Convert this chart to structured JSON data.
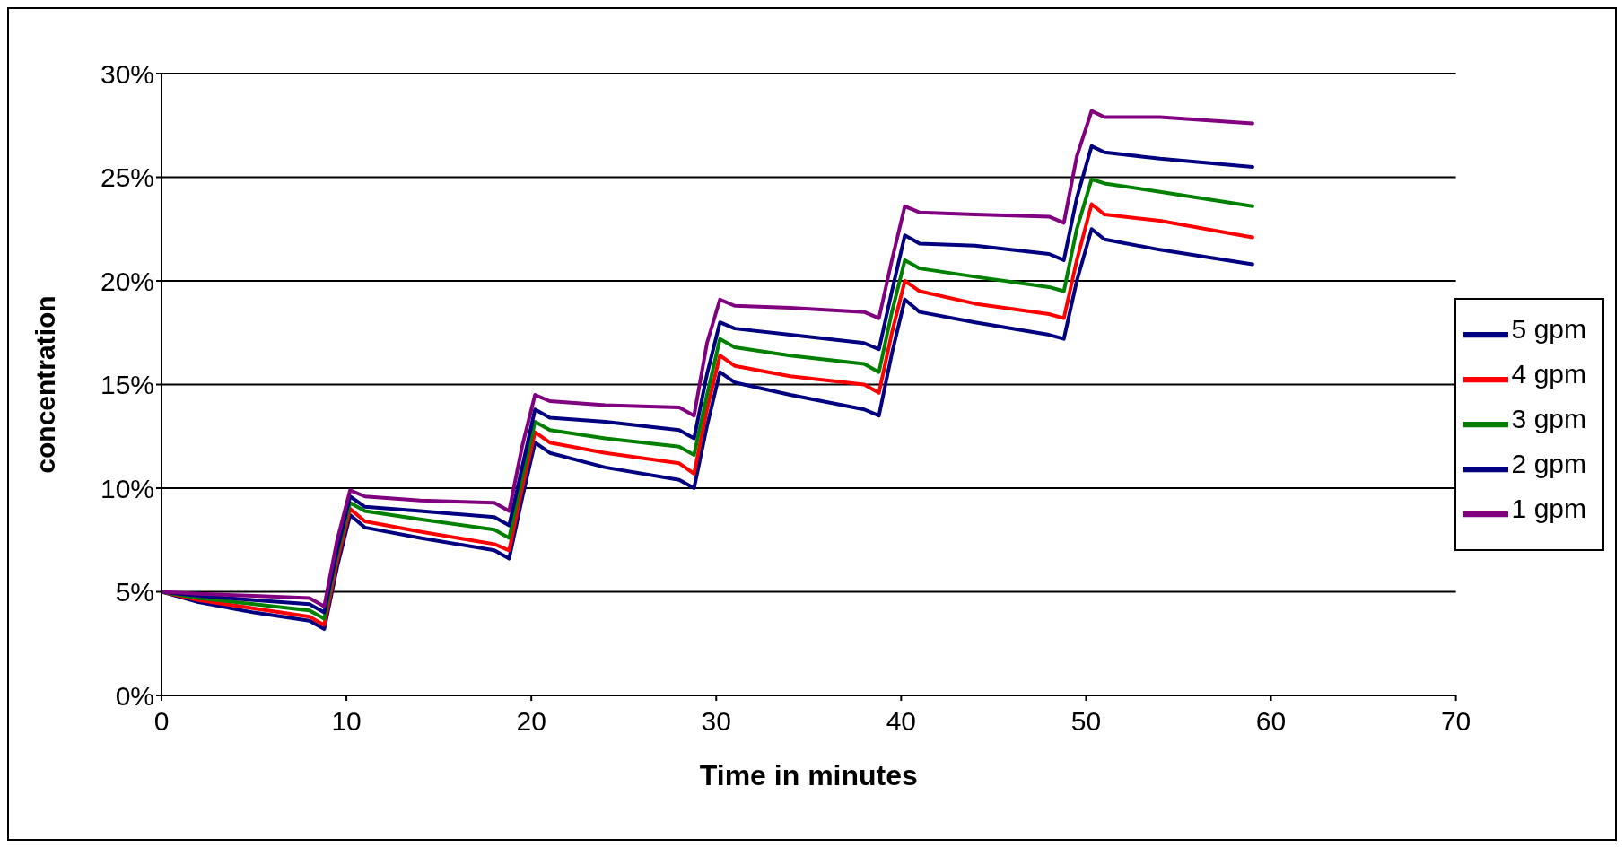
{
  "chart_data": {
    "type": "line",
    "xlabel": "Time in minutes",
    "ylabel": "concentration",
    "x": [
      0,
      2,
      5,
      8,
      8.8,
      9.5,
      10.2,
      11,
      14,
      18,
      18.8,
      19.5,
      20.2,
      21,
      24,
      28,
      28.8,
      29.5,
      30.2,
      31,
      34,
      38,
      38.8,
      39.5,
      40.2,
      41,
      44,
      48,
      48.8,
      49.5,
      50.3,
      51,
      54,
      59
    ],
    "series": [
      {
        "name": "5 gpm",
        "color": "#000080",
        "values": [
          5.0,
          4.5,
          4.0,
          3.6,
          3.2,
          6.2,
          8.7,
          8.1,
          7.6,
          7.0,
          6.6,
          9.5,
          12.2,
          11.7,
          11.0,
          10.4,
          10.0,
          13,
          15.6,
          15.1,
          14.5,
          13.8,
          13.5,
          16.5,
          19.1,
          18.5,
          18.0,
          17.4,
          17.2,
          20,
          22.5,
          22.0,
          21.5,
          20.8
        ]
      },
      {
        "name": "4 gpm",
        "color": "#ff0000",
        "values": [
          5.0,
          4.6,
          4.2,
          3.8,
          3.4,
          6.5,
          9.0,
          8.4,
          7.9,
          7.3,
          7.0,
          10,
          12.7,
          12.2,
          11.7,
          11.2,
          10.7,
          13.8,
          16.4,
          15.9,
          15.4,
          15.0,
          14.6,
          17.5,
          20.0,
          19.5,
          18.9,
          18.4,
          18.2,
          21,
          23.7,
          23.2,
          22.9,
          22.1
        ]
      },
      {
        "name": "3 gpm",
        "color": "#008000",
        "values": [
          5.0,
          4.7,
          4.4,
          4.1,
          3.7,
          6.8,
          9.3,
          8.9,
          8.5,
          8.0,
          7.6,
          10.5,
          13.2,
          12.8,
          12.4,
          12.0,
          11.6,
          14.5,
          17.2,
          16.8,
          16.4,
          16.0,
          15.6,
          18.5,
          21.0,
          20.6,
          20.2,
          19.7,
          19.5,
          22.5,
          24.9,
          24.7,
          24.3,
          23.6
        ]
      },
      {
        "name": "2 gpm",
        "color": "#000080",
        "values": [
          5.0,
          4.8,
          4.6,
          4.4,
          4.0,
          7,
          9.6,
          9.1,
          8.9,
          8.6,
          8.2,
          11,
          13.8,
          13.4,
          13.2,
          12.8,
          12.4,
          15.5,
          18.0,
          17.7,
          17.4,
          17.0,
          16.7,
          19.5,
          22.2,
          21.8,
          21.7,
          21.3,
          21.0,
          24,
          26.5,
          26.2,
          25.9,
          25.5
        ]
      },
      {
        "name": "1 gpm",
        "color": "#800080",
        "values": [
          5.0,
          4.9,
          4.8,
          4.7,
          4.3,
          7.5,
          9.9,
          9.6,
          9.4,
          9.3,
          8.9,
          12,
          14.5,
          14.2,
          14.0,
          13.9,
          13.5,
          17,
          19.1,
          18.8,
          18.7,
          18.5,
          18.2,
          21,
          23.6,
          23.3,
          23.2,
          23.1,
          22.8,
          26,
          28.2,
          27.9,
          27.9,
          27.6
        ]
      }
    ],
    "xlim": [
      0,
      70
    ],
    "xticks": [
      0,
      10,
      20,
      30,
      40,
      50,
      60,
      70
    ],
    "ylim": [
      0,
      30
    ],
    "yticks": [
      {
        "value": 0,
        "label": "0%"
      },
      {
        "value": 5,
        "label": "5%"
      },
      {
        "value": 10,
        "label": "10%"
      },
      {
        "value": 15,
        "label": "15%"
      },
      {
        "value": 20,
        "label": "20%"
      },
      {
        "value": 25,
        "label": "25%"
      },
      {
        "value": 30,
        "label": "30%"
      }
    ],
    "grid": "y",
    "legend": "right",
    "marker": "none",
    "line_style": "solid"
  }
}
